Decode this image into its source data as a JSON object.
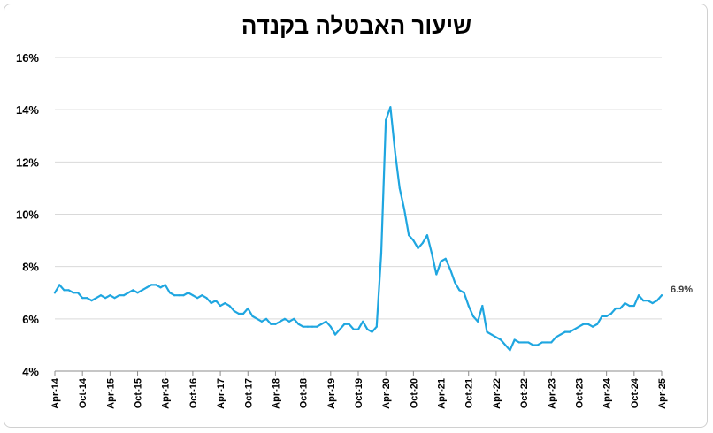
{
  "chart_data": {
    "type": "line",
    "title": "שיעור האבטלה בקנדה",
    "xlabel": "",
    "ylabel": "",
    "ylim": [
      4,
      16
    ],
    "y_ticks": [
      "4%",
      "6%",
      "8%",
      "10%",
      "12%",
      "14%",
      "16%"
    ],
    "x_tick_labels": [
      "Apr-14",
      "Oct-14",
      "Apr-15",
      "Oct-15",
      "Apr-16",
      "Oct-16",
      "Apr-17",
      "Oct-17",
      "Apr-18",
      "Oct-18",
      "Apr-19",
      "Oct-19",
      "Apr-20",
      "Oct-20",
      "Apr-21",
      "Oct-21",
      "Apr-22",
      "Oct-22",
      "Apr-23",
      "Oct-23",
      "Apr-24",
      "Oct-24",
      "Apr-25"
    ],
    "grid": true,
    "legend": "none",
    "line_color": "#1fa6e0",
    "end_label": "6.9%",
    "x_start": "Apr-14",
    "x_end": "Apr-25",
    "values": [
      7.0,
      7.3,
      7.1,
      7.1,
      7.0,
      7.0,
      6.8,
      6.8,
      6.7,
      6.8,
      6.9,
      6.8,
      6.9,
      6.8,
      6.9,
      6.9,
      7.0,
      7.1,
      7.0,
      7.1,
      7.2,
      7.3,
      7.3,
      7.2,
      7.3,
      7.0,
      6.9,
      6.9,
      6.9,
      7.0,
      6.9,
      6.8,
      6.9,
      6.8,
      6.6,
      6.7,
      6.5,
      6.6,
      6.5,
      6.3,
      6.2,
      6.2,
      6.4,
      6.1,
      6.0,
      5.9,
      6.0,
      5.8,
      5.8,
      5.9,
      6.0,
      5.9,
      6.0,
      5.8,
      5.7,
      5.7,
      5.7,
      5.7,
      5.8,
      5.9,
      5.7,
      5.4,
      5.6,
      5.8,
      5.8,
      5.6,
      5.6,
      5.9,
      5.6,
      5.5,
      5.7,
      8.5,
      13.6,
      14.1,
      12.4,
      11.0,
      10.2,
      9.2,
      9.0,
      8.7,
      8.9,
      9.2,
      8.5,
      7.7,
      8.2,
      8.3,
      7.9,
      7.4,
      7.1,
      7.0,
      6.5,
      6.1,
      5.9,
      6.5,
      5.5,
      5.4,
      5.3,
      5.2,
      5.0,
      4.8,
      5.2,
      5.1,
      5.1,
      5.1,
      5.0,
      5.0,
      5.1,
      5.1,
      5.1,
      5.3,
      5.4,
      5.5,
      5.5,
      5.6,
      5.7,
      5.8,
      5.8,
      5.7,
      5.8,
      6.1,
      6.1,
      6.2,
      6.4,
      6.4,
      6.6,
      6.5,
      6.5,
      6.9,
      6.7,
      6.7,
      6.6,
      6.7,
      6.9
    ]
  }
}
